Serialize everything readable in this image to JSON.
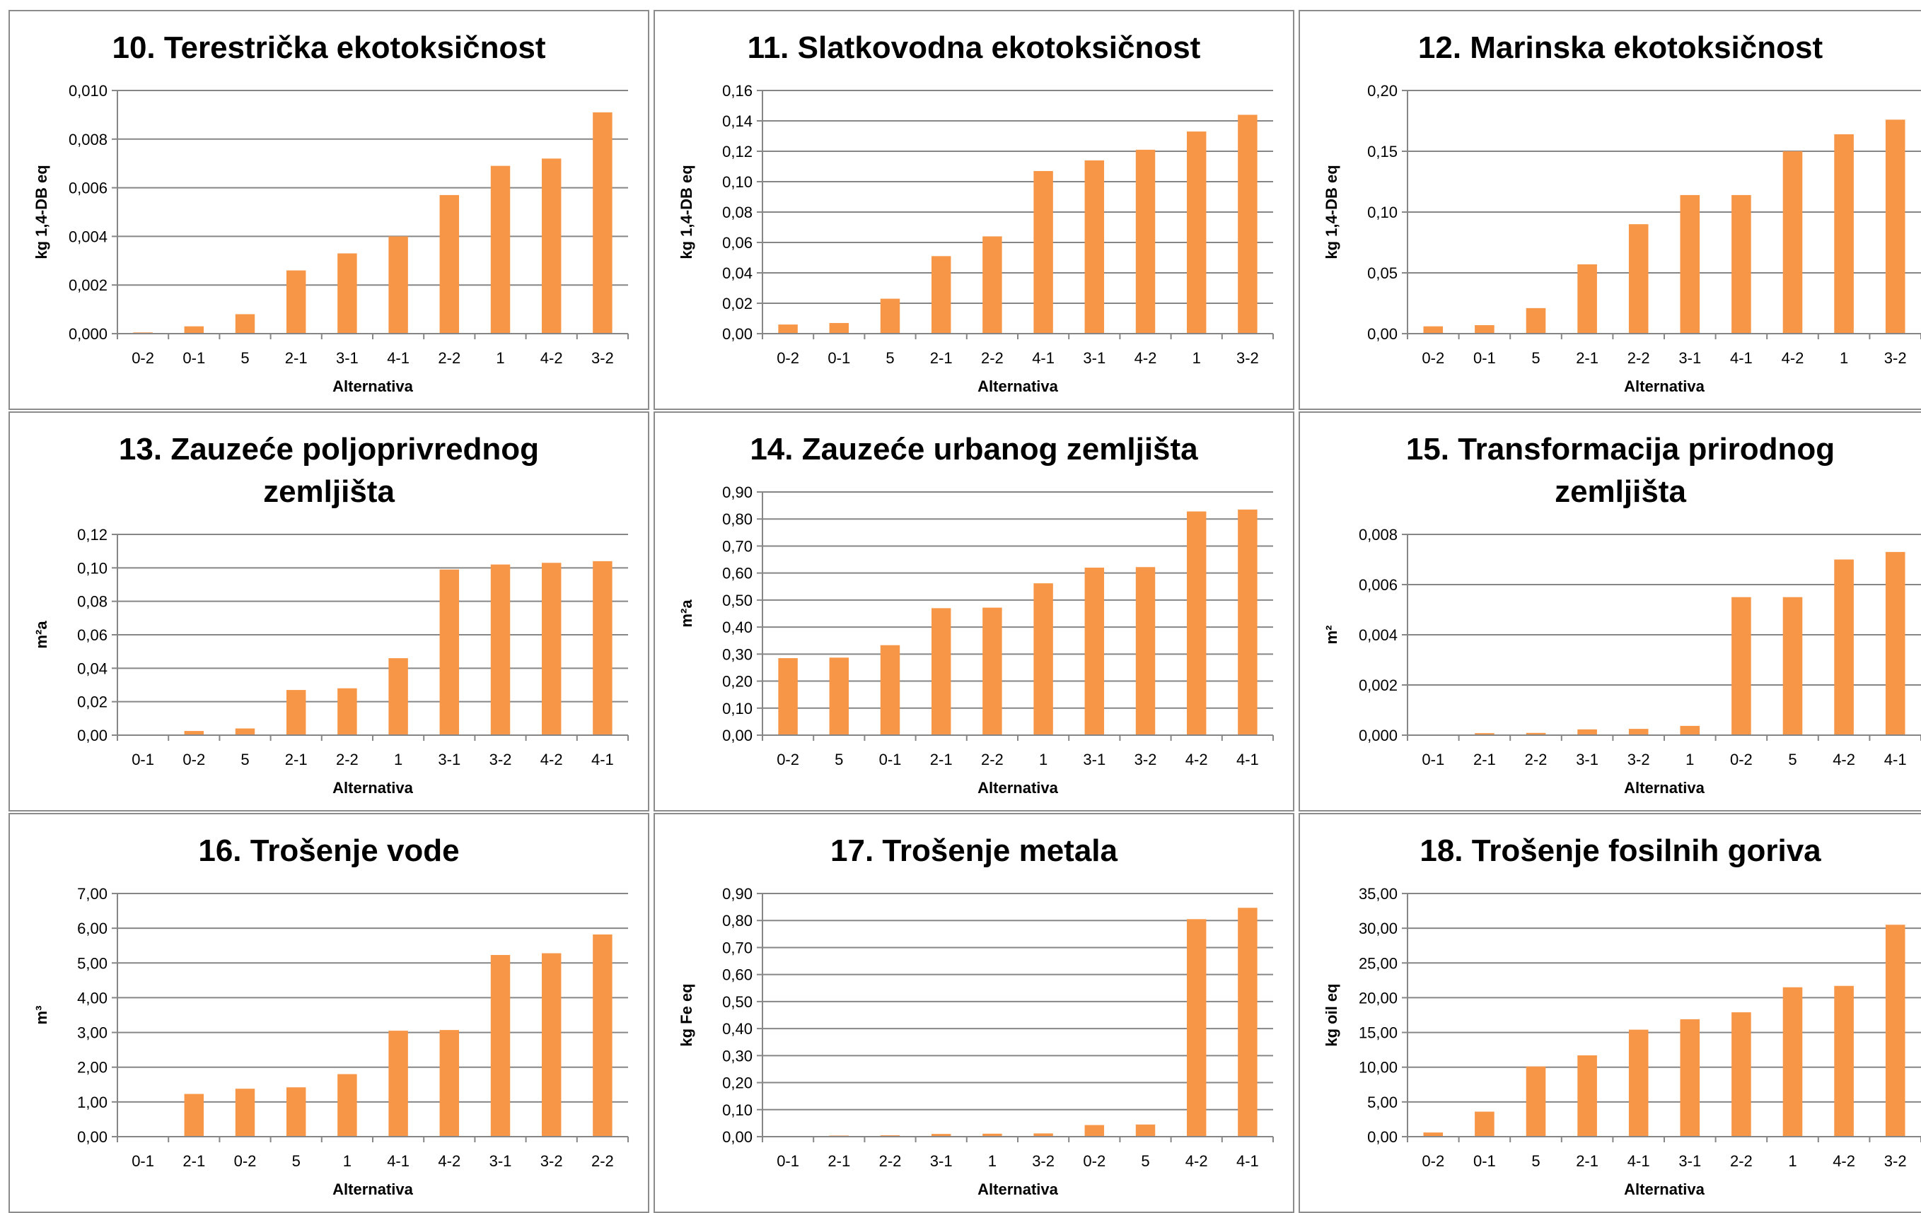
{
  "chart_data": [
    {
      "type": "bar",
      "title": "10. Terestrička ekotoksičnost",
      "xlabel": "Alternativa",
      "ylabel": "kg 1,4-DB eq",
      "categories": [
        "0-2",
        "0-1",
        "5",
        "2-1",
        "3-1",
        "4-1",
        "2-2",
        "1",
        "4-2",
        "3-2"
      ],
      "values": [
        5e-05,
        0.0003,
        0.0008,
        0.0026,
        0.0033,
        0.004,
        0.0057,
        0.0069,
        0.0072,
        0.0091
      ],
      "yticks": [
        "0,000",
        "0,002",
        "0,004",
        "0,006",
        "0,008",
        "0,010"
      ],
      "ylim": [
        0,
        0.01
      ],
      "grid": true,
      "color": "#f79646"
    },
    {
      "type": "bar",
      "title": "11. Slatkovodna ekotoksičnost",
      "xlabel": "Alternativa",
      "ylabel": "kg 1,4-DB eq",
      "categories": [
        "0-2",
        "0-1",
        "5",
        "2-1",
        "2-2",
        "4-1",
        "3-1",
        "4-2",
        "1",
        "3-2"
      ],
      "values": [
        0.006,
        0.007,
        0.023,
        0.051,
        0.064,
        0.107,
        0.114,
        0.121,
        0.133,
        0.144
      ],
      "yticks": [
        "0,00",
        "0,02",
        "0,04",
        "0,06",
        "0,08",
        "0,10",
        "0,12",
        "0,14",
        "0,16"
      ],
      "ylim": [
        0,
        0.16
      ],
      "grid": true,
      "color": "#f79646"
    },
    {
      "type": "bar",
      "title": "12. Marinska ekotoksičnost",
      "xlabel": "Alternativa",
      "ylabel": "kg 1,4-DB eq",
      "categories": [
        "0-2",
        "0-1",
        "5",
        "2-1",
        "2-2",
        "3-1",
        "4-1",
        "4-2",
        "1",
        "3-2"
      ],
      "values": [
        0.006,
        0.007,
        0.021,
        0.057,
        0.09,
        0.114,
        0.114,
        0.15,
        0.164,
        0.176
      ],
      "yticks": [
        "0,00",
        "0,05",
        "0,10",
        "0,15",
        "0,20"
      ],
      "ylim": [
        0,
        0.2
      ],
      "grid": true,
      "color": "#f79646"
    },
    {
      "type": "bar",
      "title": "13. Zauzeće poljoprivrednog\nzemljišta",
      "xlabel": "Alternativa",
      "ylabel": "m²a",
      "categories": [
        "0-1",
        "0-2",
        "5",
        "2-1",
        "2-2",
        "1",
        "3-1",
        "3-2",
        "4-2",
        "4-1"
      ],
      "values": [
        0.0,
        0.0025,
        0.004,
        0.027,
        0.028,
        0.046,
        0.099,
        0.102,
        0.103,
        0.104
      ],
      "yticks": [
        "0,00",
        "0,02",
        "0,04",
        "0,06",
        "0,08",
        "0,10",
        "0,12"
      ],
      "ylim": [
        0,
        0.12
      ],
      "grid": true,
      "color": "#f79646"
    },
    {
      "type": "bar",
      "title": "14. Zauzeće urbanog zemljišta",
      "xlabel": "Alternativa",
      "ylabel": "m²a",
      "categories": [
        "0-2",
        "5",
        "0-1",
        "2-1",
        "2-2",
        "1",
        "3-1",
        "3-2",
        "4-2",
        "4-1"
      ],
      "values": [
        0.285,
        0.287,
        0.333,
        0.47,
        0.472,
        0.562,
        0.62,
        0.622,
        0.828,
        0.835
      ],
      "yticks": [
        "0,00",
        "0,10",
        "0,20",
        "0,30",
        "0,40",
        "0,50",
        "0,60",
        "0,70",
        "0,80",
        "0,90"
      ],
      "ylim": [
        0,
        0.9
      ],
      "grid": true,
      "color": "#f79646"
    },
    {
      "type": "bar",
      "title": "15. Transformacija prirodnog\nzemljišta",
      "xlabel": "Alternativa",
      "ylabel": "m²",
      "categories": [
        "0-1",
        "2-1",
        "2-2",
        "3-1",
        "3-2",
        "1",
        "0-2",
        "5",
        "4-2",
        "4-1"
      ],
      "values": [
        0.0,
        8e-05,
        9e-05,
        0.00023,
        0.00025,
        0.00037,
        0.0055,
        0.0055,
        0.007,
        0.0073
      ],
      "yticks": [
        "0,000",
        "0,002",
        "0,004",
        "0,006",
        "0,008"
      ],
      "ylim": [
        0,
        0.008
      ],
      "grid": true,
      "color": "#f79646"
    },
    {
      "type": "bar",
      "title": "16. Trošenje vode",
      "xlabel": "Alternativa",
      "ylabel": "m³",
      "categories": [
        "0-1",
        "2-1",
        "0-2",
        "5",
        "1",
        "4-1",
        "4-2",
        "3-1",
        "3-2",
        "2-2"
      ],
      "values": [
        0.0,
        1.23,
        1.38,
        1.42,
        1.8,
        3.05,
        3.07,
        5.23,
        5.28,
        5.82
      ],
      "yticks": [
        "0,00",
        "1,00",
        "2,00",
        "3,00",
        "4,00",
        "5,00",
        "6,00",
        "7,00"
      ],
      "ylim": [
        0,
        7.0
      ],
      "grid": true,
      "color": "#f79646"
    },
    {
      "type": "bar",
      "title": "17. Trošenje metala",
      "xlabel": "Alternativa",
      "ylabel": "kg Fe eq",
      "categories": [
        "0-1",
        "2-1",
        "2-2",
        "3-1",
        "1",
        "3-2",
        "0-2",
        "5",
        "4-2",
        "4-1"
      ],
      "values": [
        0.0,
        0.004,
        0.005,
        0.01,
        0.011,
        0.012,
        0.043,
        0.045,
        0.805,
        0.847
      ],
      "yticks": [
        "0,00",
        "0,10",
        "0,20",
        "0,30",
        "0,40",
        "0,50",
        "0,60",
        "0,70",
        "0,80",
        "0,90"
      ],
      "ylim": [
        0,
        0.9
      ],
      "grid": true,
      "color": "#f79646"
    },
    {
      "type": "bar",
      "title": "18. Trošenje fosilnih goriva",
      "xlabel": "Alternativa",
      "ylabel": "kg oil eq",
      "categories": [
        "0-2",
        "0-1",
        "5",
        "2-1",
        "4-1",
        "3-1",
        "2-2",
        "1",
        "4-2",
        "3-2"
      ],
      "values": [
        0.6,
        3.6,
        10.1,
        11.7,
        15.4,
        16.9,
        17.9,
        21.5,
        21.7,
        30.5
      ],
      "yticks": [
        "0,00",
        "5,00",
        "10,00",
        "15,00",
        "20,00",
        "25,00",
        "30,00",
        "35,00"
      ],
      "ylim": [
        0,
        35.0
      ],
      "grid": true,
      "color": "#f79646"
    }
  ]
}
